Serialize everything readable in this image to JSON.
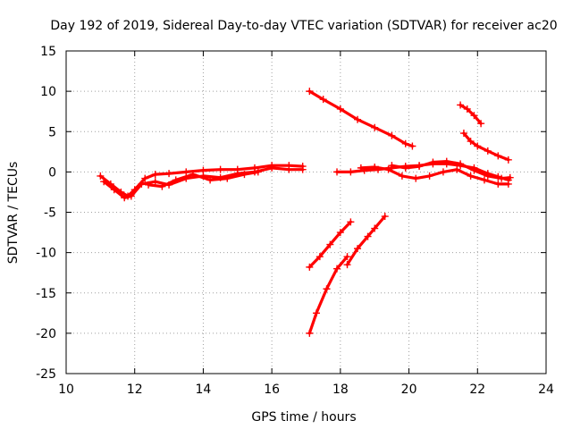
{
  "chart_data": {
    "type": "scatter",
    "title": "Day 192 of 2019, Sidereal Day-to-day VTEC variation (SDTVAR) for receiver ac20",
    "xlabel": "GPS time / hours",
    "ylabel": "SDTVAR / TECUs",
    "xlim": [
      10,
      24
    ],
    "ylim": [
      -25,
      15
    ],
    "xticks": [
      10,
      12,
      14,
      16,
      18,
      20,
      22,
      24
    ],
    "yticks": [
      -25,
      -20,
      -15,
      -10,
      -5,
      0,
      5,
      10,
      15
    ],
    "xtick_labels": [
      "10",
      "12",
      "14",
      "16",
      "18",
      "20",
      "22",
      "24"
    ],
    "ytick_labels": [
      "-25",
      "-20",
      "-15",
      "-10",
      "-5",
      "0",
      "5",
      "10",
      "15"
    ],
    "grid": true,
    "legend": "none",
    "marker": "+",
    "color": "#ff0000",
    "series": [
      {
        "x": [
          11.0,
          11.3,
          11.6,
          11.8,
          12.0,
          12.3,
          12.6,
          13.0,
          13.5,
          14.0,
          14.5,
          15.0,
          15.5,
          16.0,
          16.5,
          16.9
        ],
        "y": [
          -0.5,
          -1.5,
          -2.5,
          -3.0,
          -2.2,
          -0.8,
          -0.3,
          -0.2,
          0.0,
          0.2,
          0.3,
          0.3,
          0.5,
          0.8,
          0.8,
          0.7
        ]
      },
      {
        "x": [
          11.1,
          11.4,
          11.7,
          11.9,
          12.2,
          12.6,
          13.0,
          13.5,
          14.0,
          14.5,
          15.0,
          15.5,
          16.0,
          16.5,
          16.9
        ],
        "y": [
          -1.2,
          -2.2,
          -3.2,
          -3.0,
          -1.5,
          -1.2,
          -1.6,
          -0.8,
          -0.5,
          -0.7,
          -0.2,
          0.0,
          0.5,
          0.3,
          0.3
        ]
      },
      {
        "x": [
          12.4,
          12.8,
          13.2,
          13.7,
          14.2,
          14.7,
          15.2,
          15.6
        ],
        "y": [
          -1.6,
          -1.8,
          -1.0,
          -0.3,
          -1.0,
          -0.8,
          -0.3,
          0.0
        ]
      },
      {
        "x": [
          17.1,
          17.5,
          18.0,
          18.5,
          19.0,
          19.5,
          19.9,
          20.1
        ],
        "y": [
          10.0,
          9.0,
          7.8,
          6.5,
          5.5,
          4.5,
          3.5,
          3.2
        ]
      },
      {
        "x": [
          17.1,
          17.4,
          17.7,
          18.0,
          18.3
        ],
        "y": [
          -11.8,
          -10.5,
          -9.0,
          -7.5,
          -6.2
        ]
      },
      {
        "x": [
          17.1,
          17.3,
          17.6,
          17.9,
          18.2
        ],
        "y": [
          -20.0,
          -17.5,
          -14.5,
          -12.0,
          -10.5
        ]
      },
      {
        "x": [
          18.2,
          18.5,
          18.8,
          19.0,
          19.3
        ],
        "y": [
          -11.5,
          -9.5,
          -8.0,
          -7.0,
          -5.5
        ]
      },
      {
        "x": [
          17.9,
          18.3,
          18.7,
          19.1,
          19.5,
          19.9,
          20.3,
          20.7,
          21.1,
          21.5,
          21.9,
          22.3,
          22.6,
          22.9
        ],
        "y": [
          0.0,
          0.0,
          0.2,
          0.3,
          0.5,
          0.7,
          0.8,
          1.0,
          1.0,
          0.8,
          0.5,
          -0.2,
          -0.6,
          -1.0
        ]
      },
      {
        "x": [
          18.6,
          19.0,
          19.4,
          19.8,
          20.2,
          20.6,
          21.0,
          21.4,
          21.8,
          22.2,
          22.6,
          22.9
        ],
        "y": [
          0.5,
          0.6,
          0.3,
          -0.5,
          -0.8,
          -0.5,
          0.0,
          0.3,
          -0.5,
          -1.0,
          -1.5,
          -1.5
        ]
      },
      {
        "x": [
          19.5,
          19.9,
          20.3,
          20.7,
          21.1,
          21.5,
          21.9,
          22.3,
          22.7,
          22.95
        ],
        "y": [
          0.8,
          0.5,
          0.7,
          1.2,
          1.3,
          1.0,
          0.2,
          -0.5,
          -0.8,
          -0.7
        ]
      },
      {
        "x": [
          21.5,
          21.7,
          21.9,
          22.1
        ],
        "y": [
          8.3,
          7.8,
          7.0,
          6.0
        ]
      },
      {
        "x": [
          21.6,
          21.8,
          22.0,
          22.3,
          22.6,
          22.9
        ],
        "y": [
          4.8,
          3.8,
          3.2,
          2.6,
          2.0,
          1.5
        ]
      }
    ]
  }
}
